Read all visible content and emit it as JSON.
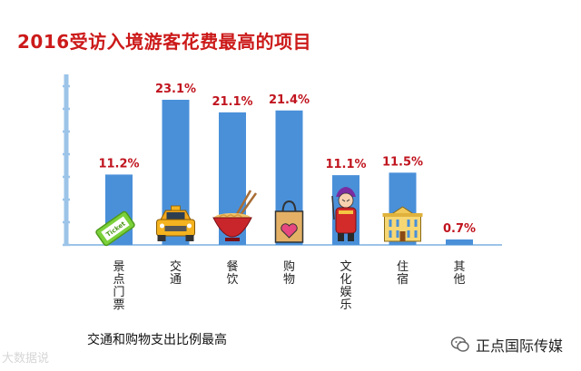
{
  "chart_data": {
    "type": "bar",
    "title": "2016受访入境游客花费最高的项目",
    "categories": [
      "景点门票",
      "交通",
      "餐饮",
      "购物",
      "文化娱乐",
      "住宿",
      "其他"
    ],
    "values": [
      11.2,
      23.1,
      21.1,
      21.4,
      11.1,
      11.5,
      0.7
    ],
    "value_labels": [
      "11.2%",
      "23.1%",
      "21.1%",
      "21.4%",
      "11.1%",
      "11.5%",
      "0.7%"
    ],
    "icons": [
      "ticket-icon",
      "taxi-icon",
      "noodle-bowl-icon",
      "shopping-bag-icon",
      "opera-performer-icon",
      "hotel-icon",
      ""
    ],
    "ylim": [
      0,
      25
    ],
    "xlabel": "",
    "ylabel": "",
    "grid": false,
    "colors": {
      "bar": "#4a90d9",
      "label": "#c0141e",
      "axis": "#9cc4e8",
      "title": "#cc1a1a"
    }
  },
  "footnote": "交通和购物支出比例最高",
  "watermark_left": "大数据说",
  "watermark_right": "正点国际传媒"
}
